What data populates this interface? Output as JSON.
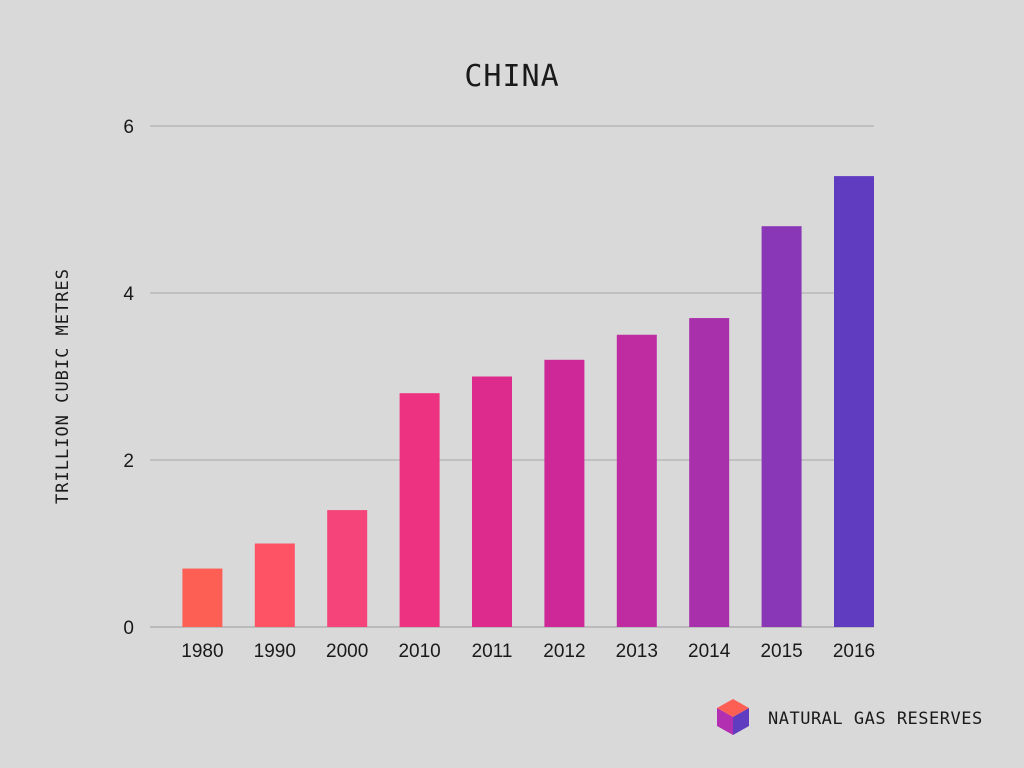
{
  "footer": {
    "label": "NATURAL GAS RESERVES",
    "icon": "cube-icon"
  },
  "chart_data": {
    "type": "bar",
    "title": "CHINA",
    "xlabel": "",
    "ylabel": "TRILLION CUBIC METRES",
    "ylim": [
      0,
      6
    ],
    "yticks": [
      0,
      2,
      4,
      6
    ],
    "grid": true,
    "categories": [
      "1980",
      "1990",
      "2000",
      "2010",
      "2011",
      "2012",
      "2013",
      "2014",
      "2015",
      "2016"
    ],
    "values": [
      0.7,
      1.0,
      1.4,
      2.8,
      3.0,
      3.2,
      3.5,
      3.7,
      4.8,
      5.4
    ],
    "colors": [
      "#fe5f55",
      "#fd5365",
      "#f4447a",
      "#ee3282",
      "#dd2b8d",
      "#ce2797",
      "#bf2ca2",
      "#a831ab",
      "#8a37b7",
      "#603cc1"
    ]
  }
}
